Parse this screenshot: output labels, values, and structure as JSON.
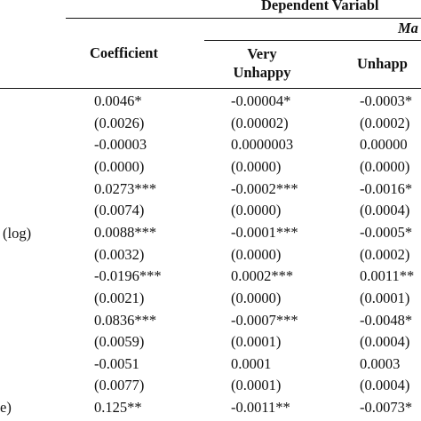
{
  "header": {
    "dependent_label": "Dependent Variabl",
    "model_label": "Ma",
    "col_coefficient": "Coefficient",
    "col_very_unhappy_1": "Very",
    "col_very_unhappy_2": "Unhappy",
    "col_unhappy": "Unhapp"
  },
  "row_labels": {
    "log": "(log)",
    "e": "e)"
  },
  "rows": [
    [
      "0.0046*",
      "-0.00004*",
      "-0.0003*"
    ],
    [
      "(0.0026)",
      "(0.00002)",
      "(0.0002)"
    ],
    [
      "-0.00003",
      "0.0000003",
      "0.00000"
    ],
    [
      "(0.0000)",
      "(0.0000)",
      "(0.0000)"
    ],
    [
      "0.0273***",
      "-0.0002***",
      "-0.0016*"
    ],
    [
      "(0.0074)",
      "(0.0000)",
      "(0.0004)"
    ],
    [
      "0.0088***",
      "-0.0001***",
      "-0.0005*"
    ],
    [
      "(0.0032)",
      "(0.0000)",
      "(0.0002)"
    ],
    [
      "-0.0196***",
      "0.0002***",
      "0.0011**"
    ],
    [
      "(0.0021)",
      "(0.0000)",
      "(0.0001)"
    ],
    [
      "0.0836***",
      "-0.0007***",
      "-0.0048*"
    ],
    [
      "(0.0059)",
      "(0.0001)",
      "(0.0004)"
    ],
    [
      "-0.0051",
      "0.0001",
      "0.0003"
    ],
    [
      "(0.0077)",
      "(0.0001)",
      "(0.0004)"
    ],
    [
      "0.125**",
      "-0.0011**",
      "-0.0073*"
    ]
  ]
}
